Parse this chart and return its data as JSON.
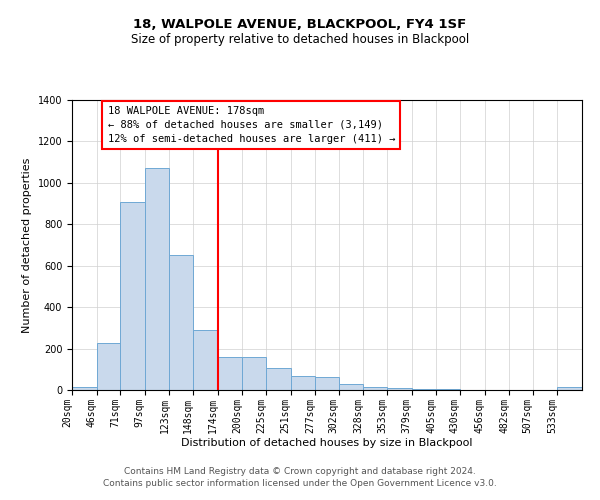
{
  "title": "18, WALPOLE AVENUE, BLACKPOOL, FY4 1SF",
  "subtitle": "Size of property relative to detached houses in Blackpool",
  "xlabel": "Distribution of detached houses by size in Blackpool",
  "ylabel": "Number of detached properties",
  "bin_labels": [
    "20sqm",
    "46sqm",
    "71sqm",
    "97sqm",
    "123sqm",
    "148sqm",
    "174sqm",
    "200sqm",
    "225sqm",
    "251sqm",
    "277sqm",
    "302sqm",
    "328sqm",
    "353sqm",
    "379sqm",
    "405sqm",
    "430sqm",
    "456sqm",
    "482sqm",
    "507sqm",
    "533sqm"
  ],
  "bar_heights": [
    15,
    225,
    910,
    1070,
    650,
    290,
    160,
    160,
    105,
    70,
    65,
    30,
    15,
    10,
    5,
    5,
    0,
    0,
    0,
    0,
    15
  ],
  "bar_color": "#c9d9ec",
  "bar_edge_color": "#6fa8d4",
  "vline_x": 174,
  "vline_color": "red",
  "ylim": [
    0,
    1400
  ],
  "yticks": [
    0,
    200,
    400,
    600,
    800,
    1000,
    1200,
    1400
  ],
  "bin_edges": [
    20,
    46,
    71,
    97,
    123,
    148,
    174,
    200,
    225,
    251,
    277,
    302,
    328,
    353,
    379,
    405,
    430,
    456,
    482,
    507,
    533,
    559
  ],
  "annotation_title": "18 WALPOLE AVENUE: 178sqm",
  "annotation_line1": "← 88% of detached houses are smaller (3,149)",
  "annotation_line2": "12% of semi-detached houses are larger (411) →",
  "footnote1": "Contains HM Land Registry data © Crown copyright and database right 2024.",
  "footnote2": "Contains public sector information licensed under the Open Government Licence v3.0.",
  "title_fontsize": 9.5,
  "subtitle_fontsize": 8.5,
  "axis_label_fontsize": 8,
  "tick_fontsize": 7,
  "annotation_fontsize": 7.5,
  "footnote_fontsize": 6.5
}
